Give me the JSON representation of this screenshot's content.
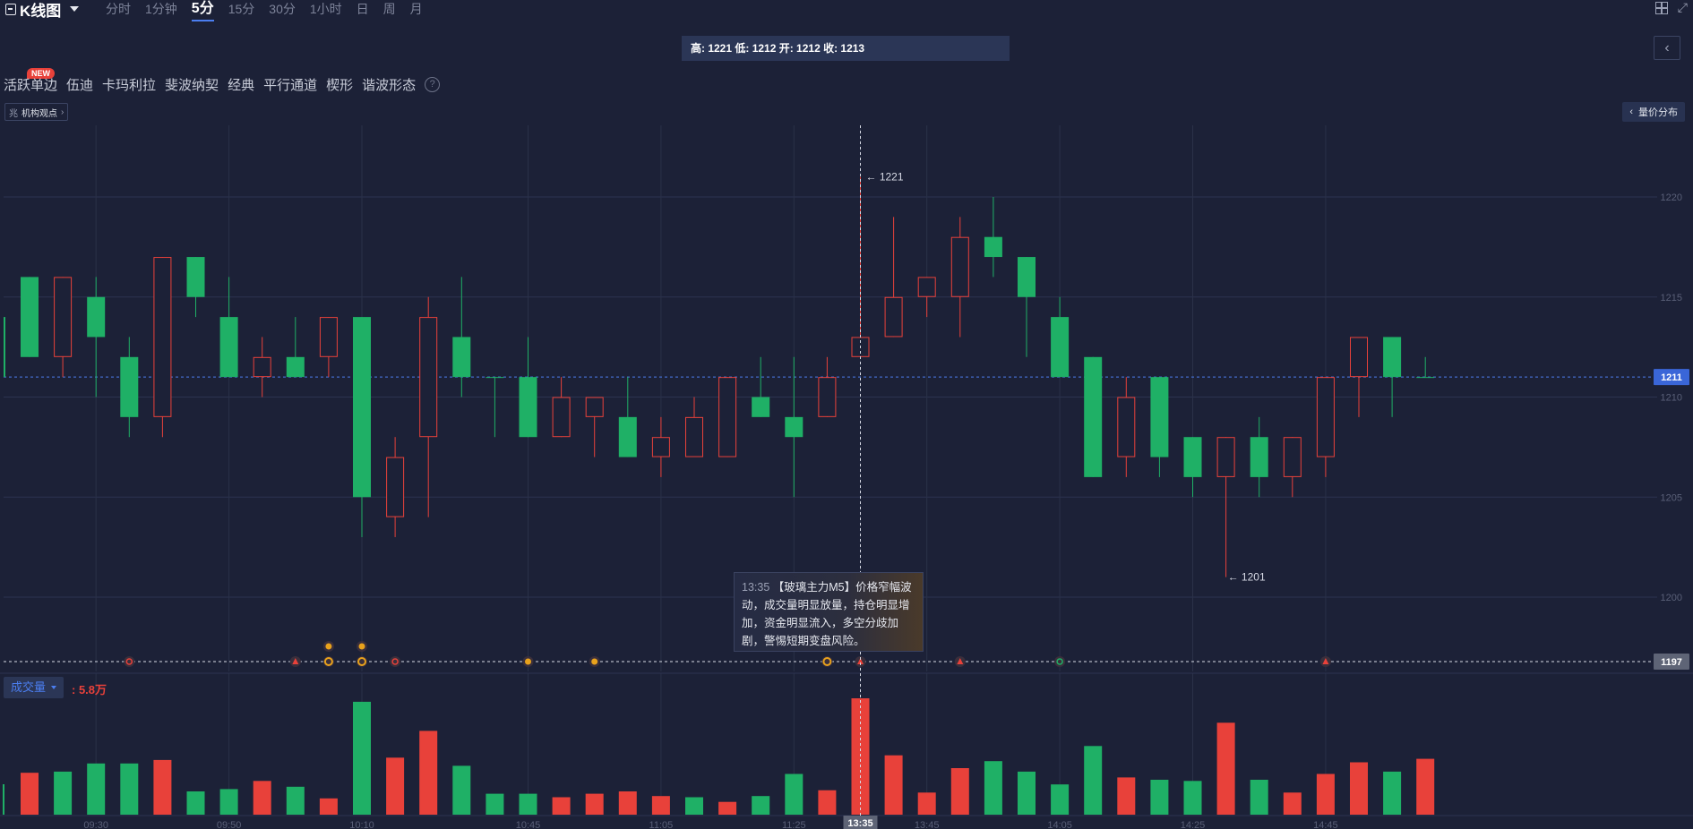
{
  "toolbar": {
    "title": "K线图",
    "periods": [
      "分时",
      "1分钟",
      "5分",
      "15分",
      "30分",
      "1小时",
      "日",
      "周",
      "月"
    ],
    "active_period": "5分"
  },
  "ohlc_bar": "高: 1221 低: 1212 开: 1212 收: 1213",
  "tools": {
    "new_badge": "NEW",
    "items": [
      "活跃单边",
      "伍迪",
      "卡玛利拉",
      "斐波纳契",
      "经典",
      "平行通道",
      "楔形",
      "谐波形态"
    ],
    "help": "?"
  },
  "institution_view": {
    "icon": "兆",
    "label": "机构观点"
  },
  "volume_distribution": "量价分布",
  "volume_panel": {
    "label": "成交量",
    "value": ": 5.8万"
  },
  "tooltip": {
    "time": "13:35",
    "text": "【玻璃主力M5】价格窄幅波动，成交量明显放量，持仓明显增加，资金明显流入，多空分歧加剧，警惕短期变盘风险。"
  },
  "colors": {
    "up": "#e8413a",
    "down": "#1fb066",
    "background": "#1c2137",
    "accent": "#4b7ef0"
  },
  "chart_data": {
    "type": "candlestick",
    "y_ticks": [
      1220,
      1215,
      1210,
      1205,
      1200
    ],
    "ylim": [
      1195,
      1224
    ],
    "x_ticks": [
      "09:30",
      "09:50",
      "10:10",
      "10:45",
      "11:05",
      "11:25",
      "13:35",
      "13:45",
      "14:05",
      "14:25",
      "14:45"
    ],
    "last_price": "1211",
    "cursor_price": "1197",
    "max_label": "1221",
    "min_label": "1201",
    "candles": [
      {
        "o": 1216,
        "h": 1216,
        "l": 1212,
        "c": 1212
      },
      {
        "o": 1212,
        "h": 1216,
        "l": 1211,
        "c": 1216
      },
      {
        "o": 1215,
        "h": 1216,
        "l": 1210,
        "c": 1213
      },
      {
        "o": 1212,
        "h": 1213,
        "l": 1208,
        "c": 1209
      },
      {
        "o": 1209,
        "h": 1217,
        "l": 1208,
        "c": 1217
      },
      {
        "o": 1217,
        "h": 1217,
        "l": 1214,
        "c": 1215
      },
      {
        "o": 1214,
        "h": 1216,
        "l": 1211,
        "c": 1211
      },
      {
        "o": 1211,
        "h": 1213,
        "l": 1210,
        "c": 1212
      },
      {
        "o": 1212,
        "h": 1214,
        "l": 1211,
        "c": 1211
      },
      {
        "o": 1212,
        "h": 1214,
        "l": 1211,
        "c": 1214
      },
      {
        "o": 1214,
        "h": 1214,
        "l": 1203,
        "c": 1205
      },
      {
        "o": 1204,
        "h": 1208,
        "l": 1203,
        "c": 1207
      },
      {
        "o": 1208,
        "h": 1215,
        "l": 1204,
        "c": 1214
      },
      {
        "o": 1213,
        "h": 1216,
        "l": 1210,
        "c": 1211
      },
      {
        "o": 1211,
        "h": 1211,
        "l": 1208,
        "c": 1211
      },
      {
        "o": 1211,
        "h": 1213,
        "l": 1208,
        "c": 1208
      },
      {
        "o": 1208,
        "h": 1211,
        "l": 1208,
        "c": 1210
      },
      {
        "o": 1209,
        "h": 1210,
        "l": 1207,
        "c": 1210
      },
      {
        "o": 1209,
        "h": 1211,
        "l": 1207,
        "c": 1207
      },
      {
        "o": 1207,
        "h": 1209,
        "l": 1206,
        "c": 1208
      },
      {
        "o": 1207,
        "h": 1210,
        "l": 1207,
        "c": 1209
      },
      {
        "o": 1207,
        "h": 1211,
        "l": 1207,
        "c": 1211
      },
      {
        "o": 1210,
        "h": 1212,
        "l": 1209,
        "c": 1209
      },
      {
        "o": 1209,
        "h": 1212,
        "l": 1205,
        "c": 1208
      },
      {
        "o": 1209,
        "h": 1212,
        "l": 1209,
        "c": 1211
      },
      {
        "o": 1212,
        "h": 1221,
        "l": 1212,
        "c": 1213
      },
      {
        "o": 1213,
        "h": 1219,
        "l": 1213,
        "c": 1215
      },
      {
        "o": 1215,
        "h": 1216,
        "l": 1214,
        "c": 1216
      },
      {
        "o": 1215,
        "h": 1219,
        "l": 1213,
        "c": 1218
      },
      {
        "o": 1218,
        "h": 1220,
        "l": 1216,
        "c": 1217
      },
      {
        "o": 1217,
        "h": 1217,
        "l": 1212,
        "c": 1215
      },
      {
        "o": 1214,
        "h": 1215,
        "l": 1211,
        "c": 1211
      },
      {
        "o": 1212,
        "h": 1212,
        "l": 1206,
        "c": 1206
      },
      {
        "o": 1207,
        "h": 1211,
        "l": 1206,
        "c": 1210
      },
      {
        "o": 1211,
        "h": 1211,
        "l": 1206,
        "c": 1207
      },
      {
        "o": 1208,
        "h": 1208,
        "l": 1205,
        "c": 1206
      },
      {
        "o": 1206,
        "h": 1208,
        "l": 1201,
        "c": 1208
      },
      {
        "o": 1208,
        "h": 1209,
        "l": 1205,
        "c": 1206
      },
      {
        "o": 1206,
        "h": 1208,
        "l": 1205,
        "c": 1208
      },
      {
        "o": 1207,
        "h": 1211,
        "l": 1206,
        "c": 1211
      },
      {
        "o": 1211,
        "h": 1213,
        "l": 1209,
        "c": 1213
      },
      {
        "o": 1213,
        "h": 1213,
        "l": 1209,
        "c": 1211
      },
      {
        "o": 1211,
        "h": 1212,
        "l": 1211,
        "c": 1211
      }
    ],
    "volumes": [
      0.36,
      0.37,
      0.44,
      0.44,
      0.47,
      0.2,
      0.22,
      0.29,
      0.24,
      0.14,
      0.97,
      0.49,
      0.72,
      0.42,
      0.18,
      0.18,
      0.15,
      0.18,
      0.2,
      0.16,
      0.15,
      0.11,
      0.16,
      0.35,
      0.21,
      1.0,
      0.51,
      0.19,
      0.4,
      0.46,
      0.37,
      0.26,
      0.59,
      0.32,
      0.3,
      0.29,
      0.79,
      0.3,
      0.19,
      0.35,
      0.45,
      0.37,
      0.48
    ],
    "volume_colors": [
      "up",
      "down",
      "down",
      "down",
      "up",
      "down",
      "down",
      "up",
      "down",
      "up",
      "down",
      "up",
      "up",
      "down",
      "down",
      "down",
      "up",
      "up",
      "up",
      "up",
      "down",
      "up",
      "down",
      "down",
      "up",
      "up",
      "up",
      "up",
      "up",
      "down",
      "down",
      "down",
      "down",
      "up",
      "down",
      "down",
      "up",
      "down",
      "up",
      "up",
      "up",
      "down",
      "up"
    ],
    "markers": [
      {
        "i": 3,
        "type": "dollar",
        "color": "up"
      },
      {
        "i": 8,
        "type": "triangle",
        "color": "up"
      },
      {
        "i": 9,
        "type": "gold",
        "color": "gold",
        "stack": true
      },
      {
        "i": 10,
        "type": "gold",
        "color": "gold",
        "stack": true
      },
      {
        "i": 11,
        "type": "dollar",
        "color": "up"
      },
      {
        "i": 15,
        "type": "star",
        "color": "gold"
      },
      {
        "i": 17,
        "type": "star",
        "color": "gold"
      },
      {
        "i": 24,
        "type": "gold",
        "color": "gold"
      },
      {
        "i": 25,
        "type": "triangle",
        "color": "up"
      },
      {
        "i": 28,
        "type": "triangle",
        "color": "up"
      },
      {
        "i": 31,
        "type": "dollar",
        "color": "down"
      },
      {
        "i": 39,
        "type": "triangle",
        "color": "up"
      }
    ]
  }
}
